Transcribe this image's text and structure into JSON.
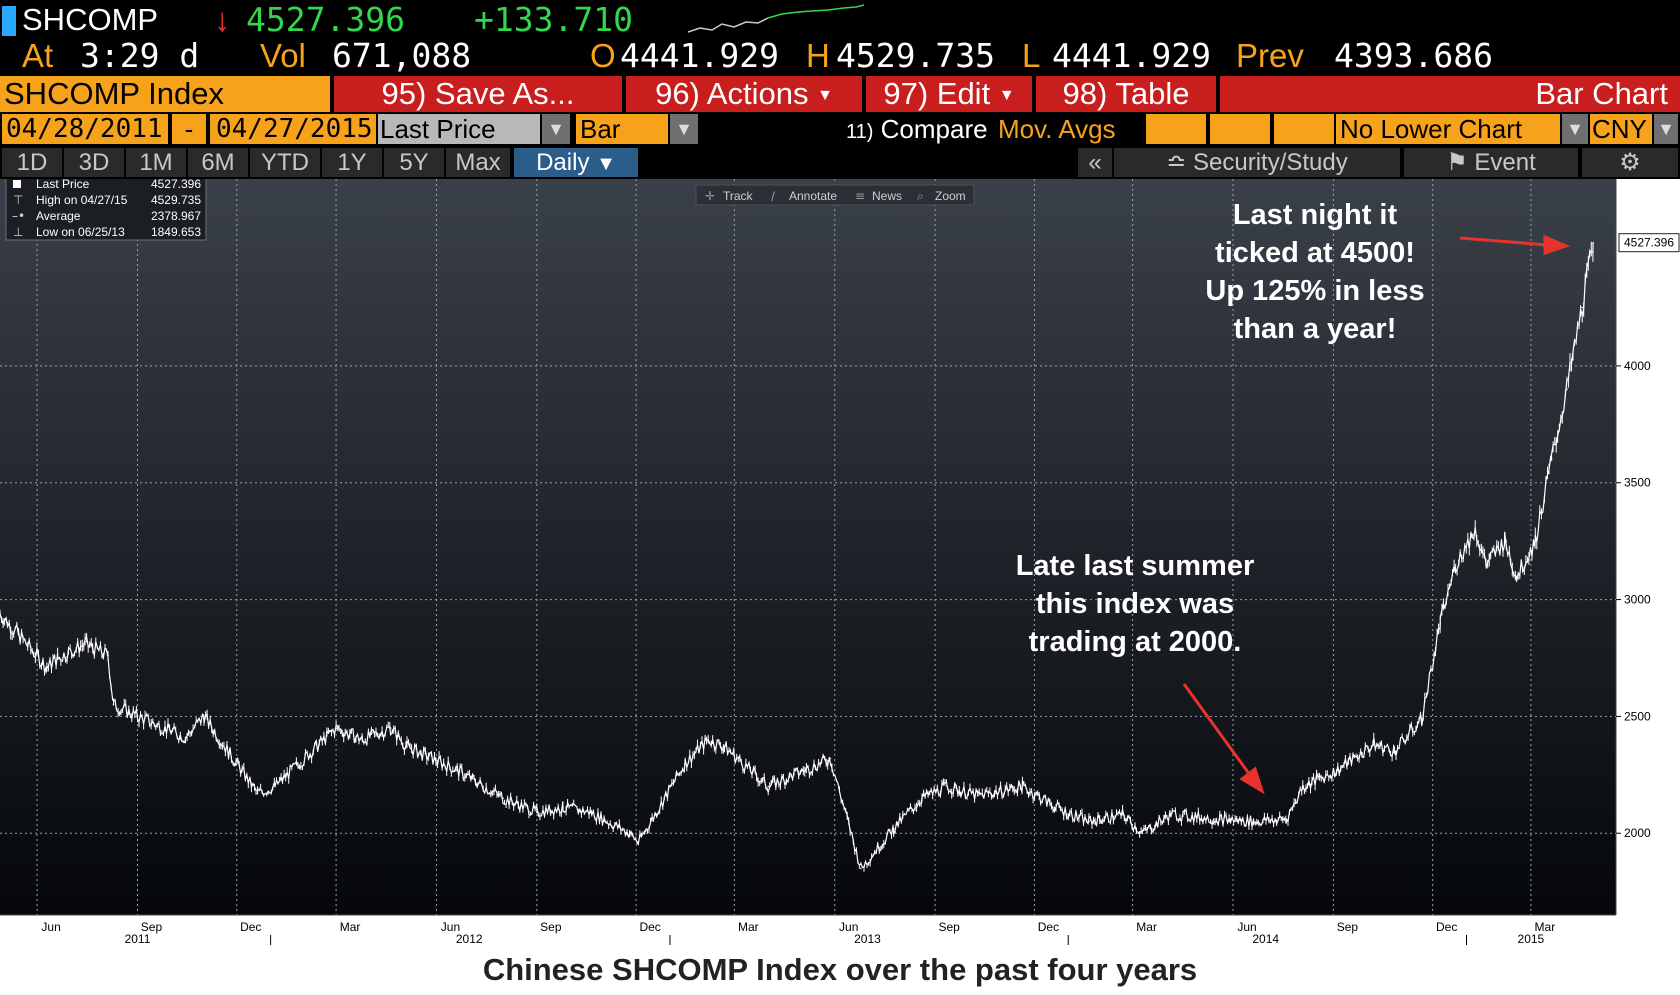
{
  "header": {
    "ticker": "SHCOMP",
    "arrow": "↓",
    "last": "4527.396",
    "change": "+133.710",
    "time_label": "At",
    "time": "3:29 d",
    "vol_label": "Vol",
    "vol": "671,088",
    "open_label": "O",
    "open": "4441.929",
    "high_label": "H",
    "high": "4529.735",
    "low_label": "L",
    "low": "4441.929",
    "prev_label": "Prev",
    "prev": "4393.686"
  },
  "toolbar": {
    "security": "SHCOMP Index",
    "save_as": "95) Save As...",
    "actions": "96) Actions",
    "edit": "97) Edit",
    "table": "98) Table",
    "chart_type": "Bar Chart"
  },
  "settings": {
    "start_date": "04/28/2011",
    "dash": "-",
    "end_date": "04/27/2015",
    "field": "Last Price",
    "style": "Bar",
    "compare_num": "11)",
    "compare": "Compare",
    "mov_avgs": "Mov. Avgs",
    "lower_chart": "No Lower Chart",
    "currency": "CNY"
  },
  "periods": [
    "1D",
    "3D",
    "1M",
    "6M",
    "YTD",
    "1Y",
    "5Y",
    "Max"
  ],
  "frequency": "Daily",
  "right_tools": {
    "collapse": "«",
    "security_study": "Security/Study",
    "event": "Event"
  },
  "chart_tools": [
    "Track",
    "Annotate",
    "News",
    "Zoom"
  ],
  "legend": {
    "rows": [
      {
        "label": "Last Price",
        "value": "4527.396"
      },
      {
        "label": "High on 04/27/15",
        "value": "4529.735"
      },
      {
        "label": "Average",
        "value": "2378.967"
      },
      {
        "label": "Low on 06/25/13",
        "value": "1849.653"
      }
    ]
  },
  "annotations": {
    "top": [
      "Last night it",
      "ticked at 4500!",
      "Up 125% in less",
      "than a year!"
    ],
    "bottom": [
      "Late last summer",
      "this index was",
      "trading at 2000."
    ]
  },
  "caption": "Chinese SHCOMP Index over the past four years",
  "colors": {
    "background_top": "#3a4049",
    "background_bottom": "#05070a",
    "bars": "#ffffff",
    "arrow": "#e8322d",
    "orange": "#f7a21b",
    "red_button": "#c81e1e"
  },
  "chart_data": {
    "type": "line",
    "ylim": [
      1650,
      4800
    ],
    "y_ticks": [
      2000,
      2500,
      3000,
      3500,
      4000
    ],
    "last_label": "4527.396",
    "x_months": [
      "Jun",
      "Sep",
      "Dec",
      "Mar",
      "Jun",
      "Sep",
      "Dec",
      "Mar",
      "Jun",
      "Sep",
      "Dec",
      "Mar",
      "Jun",
      "Sep",
      "Dec",
      "Mar"
    ],
    "x_years": [
      "2011",
      "2012",
      "2013",
      "2014",
      "2015"
    ],
    "x": [
      "2011-04-28",
      "2011-05-15",
      "2011-06-10",
      "2011-06-20",
      "2011-07-15",
      "2011-08-05",
      "2011-08-10",
      "2011-09-01",
      "2011-10-15",
      "2011-11-01",
      "2011-12-20",
      "2012-01-05",
      "2012-03-01",
      "2012-03-25",
      "2012-04-20",
      "2012-05-05",
      "2012-06-20",
      "2012-08-01",
      "2012-09-01",
      "2012-09-25",
      "2012-10-20",
      "2012-11-25",
      "2012-12-03",
      "2013-01-15",
      "2013-02-05",
      "2013-02-20",
      "2013-04-01",
      "2013-05-28",
      "2013-06-25",
      "2013-07-25",
      "2013-08-20",
      "2013-09-12",
      "2013-10-10",
      "2013-11-20",
      "2013-12-25",
      "2014-01-20",
      "2014-02-20",
      "2014-03-10",
      "2014-04-05",
      "2014-05-20",
      "2014-06-20",
      "2014-07-20",
      "2014-08-04",
      "2014-09-05",
      "2014-10-08",
      "2014-10-27",
      "2014-11-21",
      "2014-12-08",
      "2014-12-22",
      "2015-01-09",
      "2015-01-19",
      "2015-02-05",
      "2015-02-16",
      "2015-03-05",
      "2015-03-20",
      "2015-04-03",
      "2015-04-17",
      "2015-04-27"
    ],
    "y": [
      2940,
      2850,
      2710,
      2750,
      2810,
      2760,
      2550,
      2500,
      2410,
      2500,
      2170,
      2200,
      2450,
      2400,
      2450,
      2370,
      2270,
      2150,
      2090,
      2110,
      2090,
      2000,
      1960,
      2300,
      2400,
      2370,
      2200,
      2320,
      1849.653,
      2020,
      2150,
      2200,
      2160,
      2200,
      2100,
      2050,
      2080,
      2000,
      2080,
      2060,
      2050,
      2060,
      2200,
      2270,
      2380,
      2350,
      2490,
      2900,
      3150,
      3300,
      3150,
      3250,
      3100,
      3250,
      3600,
      3900,
      4250,
      4527.396
    ]
  }
}
